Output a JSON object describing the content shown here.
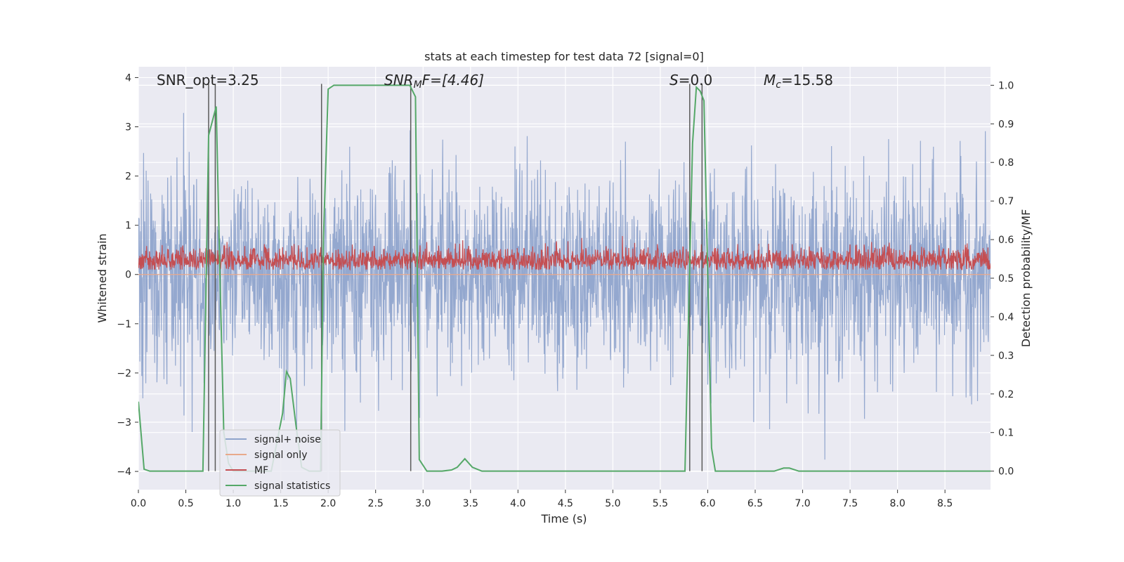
{
  "chart_data": {
    "type": "line",
    "title": "stats at each timestep for test data 72 [signal=0]",
    "xlabel": "Time (s)",
    "ylabel": "Whitened strain",
    "ylabel_right": "Detection probability/MF",
    "xlim": [
      0,
      8.98
    ],
    "ylim": [
      -4.37,
      4.22
    ],
    "ylim_right": [
      -0.048,
      1.048
    ],
    "x_ticks": [
      "0.0",
      "0.5",
      "1.0",
      "1.5",
      "2.0",
      "2.5",
      "3.0",
      "3.5",
      "4.0",
      "4.5",
      "5.0",
      "5.5",
      "6.0",
      "6.5",
      "7.0",
      "7.5",
      "8.0",
      "8.5"
    ],
    "y_ticks": [
      "−4",
      "−3",
      "−2",
      "−1",
      "0",
      "1",
      "2",
      "3",
      "4"
    ],
    "y_ticks_right": [
      "0.0",
      "0.1",
      "0.2",
      "0.3",
      "0.4",
      "0.5",
      "0.6",
      "0.7",
      "0.8",
      "0.9",
      "1.0"
    ],
    "grid": true,
    "legend_position": "lower-left",
    "annotations": {
      "snr_opt": "SNR_opt=3.25",
      "snr_mf_base": "SNR",
      "snr_mf_sub": "M",
      "snr_mf_rest": "F=[4.46]",
      "s_base": "S",
      "s_rest": "=0.0",
      "mc_base": "M",
      "mc_sub": "c",
      "mc_rest": "=15.58"
    },
    "series": [
      {
        "name": "signal+ noise",
        "color": "#8fa4cc",
        "kind": "noise",
        "noise": {
          "sigma": 1.0,
          "max_abs": 4.0,
          "n_samples": 2300,
          "t_start": 0.0,
          "t_end": 8.98
        }
      },
      {
        "name": "signal only",
        "color": "#e8a98b",
        "kind": "flat",
        "values": [
          0.0,
          0.0
        ]
      },
      {
        "name": "MF",
        "color": "#c44e52",
        "kind": "noise",
        "noise": {
          "center": 0.28,
          "sigma": 0.1,
          "min": 0.1,
          "max": 0.95,
          "n_samples": 2300,
          "t_start": 0.0,
          "t_end": 8.98
        }
      },
      {
        "name": "signal statistics",
        "color": "#55a868",
        "kind": "line",
        "axis": "right",
        "x": [
          0.0,
          0.06,
          0.12,
          0.3,
          0.5,
          0.68,
          0.74,
          0.82,
          0.86,
          0.9,
          0.95,
          1.0,
          1.2,
          1.4,
          1.52,
          1.56,
          1.6,
          1.66,
          1.72,
          1.8,
          1.86,
          1.92,
          1.95,
          2.0,
          2.06,
          2.3,
          2.6,
          2.86,
          2.92,
          2.96,
          3.04,
          3.2,
          3.3,
          3.36,
          3.44,
          3.52,
          3.62,
          3.8,
          4.5,
          5.0,
          5.5,
          5.76,
          5.84,
          5.88,
          5.92,
          5.96,
          6.04,
          6.08,
          6.3,
          6.7,
          6.8,
          6.86,
          6.96,
          7.5,
          8.0,
          8.5,
          8.98
        ],
        "values": [
          0.18,
          0.005,
          0.0,
          0.0,
          0.0,
          0.0,
          0.87,
          0.945,
          0.5,
          0.1,
          0.02,
          0.0,
          0.0,
          0.0,
          0.15,
          0.258,
          0.24,
          0.12,
          0.01,
          0.0,
          0.0,
          0.0,
          0.6,
          0.99,
          1.0,
          1.0,
          1.0,
          1.0,
          0.97,
          0.03,
          0.0,
          0.0,
          0.003,
          0.01,
          0.032,
          0.01,
          0.0,
          0.0,
          0.0,
          0.0,
          0.0,
          0.0,
          0.85,
          0.995,
          0.985,
          0.96,
          0.06,
          0.0,
          0.0,
          0.0,
          0.008,
          0.008,
          0.0,
          0.0,
          0.0,
          0.0,
          0.0
        ]
      }
    ],
    "vlines": [
      0.74,
      0.81,
      1.93,
      2.87,
      5.81,
      5.94
    ],
    "vline_color": "#5a5a5a"
  }
}
